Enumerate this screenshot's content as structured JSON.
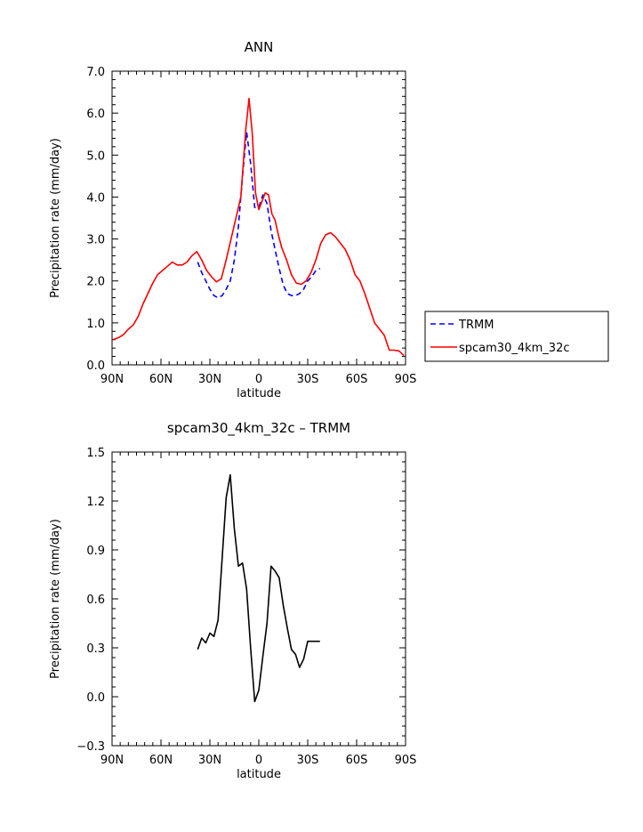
{
  "chart_data": [
    {
      "type": "line",
      "title": "ANN",
      "xlabel": "latitude",
      "ylabel": "Precipitation rate (mm/day)",
      "xlim": [
        -90,
        90
      ],
      "ylim": [
        0,
        7
      ],
      "xticks": [
        -90,
        -60,
        -30,
        0,
        30,
        60,
        90
      ],
      "xtick_labels": [
        "90N",
        "60N",
        "30N",
        "0",
        "30S",
        "60S",
        "90S"
      ],
      "yticks": [
        0,
        1,
        2,
        3,
        4,
        5,
        6,
        7
      ],
      "ytick_labels": [
        "0.0",
        "1.0",
        "2.0",
        "3.0",
        "4.0",
        "5.0",
        "6.0",
        "7.0"
      ],
      "legend_position": "right",
      "series": [
        {
          "name": "TRMM",
          "color": "#0000ff",
          "dash": "dashed",
          "x": [
            -37.5,
            -35,
            -32.5,
            -30,
            -27.5,
            -25,
            -22.5,
            -20,
            -17.5,
            -15,
            -12.5,
            -10,
            -7.5,
            -5,
            -2.5,
            0,
            2.5,
            5,
            7.5,
            10,
            12.5,
            15,
            17.5,
            20,
            22.5,
            25,
            27.5,
            30,
            32.5,
            35,
            37.5
          ],
          "y": [
            2.45,
            2.2,
            2.0,
            1.8,
            1.65,
            1.6,
            1.65,
            1.8,
            2.0,
            2.5,
            3.3,
            4.5,
            5.55,
            4.8,
            3.75,
            3.75,
            4.05,
            3.85,
            3.2,
            2.75,
            2.3,
            1.9,
            1.7,
            1.65,
            1.65,
            1.7,
            1.8,
            2.0,
            2.1,
            2.25,
            2.3
          ]
        },
        {
          "name": "spcam30_4km_32c",
          "color": "#ff0000",
          "dash": "solid",
          "x": [
            -89.5,
            -86,
            -83,
            -80,
            -77,
            -74,
            -71,
            -68,
            -65,
            -62,
            -59,
            -56,
            -53,
            -50,
            -47,
            -44,
            -41,
            -38,
            -35,
            -32,
            -29,
            -26,
            -23,
            -20,
            -17,
            -14,
            -11,
            -8,
            -6,
            -4,
            -2,
            0,
            2,
            4,
            6,
            8,
            10,
            12,
            14,
            17,
            20,
            23,
            26,
            29,
            32,
            35,
            38,
            41,
            44,
            47,
            50,
            53,
            56,
            59,
            62,
            65,
            68,
            71,
            74,
            77,
            80,
            83,
            86,
            89
          ],
          "y": [
            0.6,
            0.65,
            0.72,
            0.85,
            0.95,
            1.15,
            1.45,
            1.7,
            1.95,
            2.15,
            2.25,
            2.35,
            2.45,
            2.38,
            2.38,
            2.45,
            2.6,
            2.7,
            2.5,
            2.25,
            2.1,
            1.98,
            2.05,
            2.5,
            3.0,
            3.5,
            4.0,
            5.6,
            6.35,
            5.5,
            4.1,
            3.7,
            3.9,
            4.1,
            4.05,
            3.6,
            3.45,
            3.1,
            2.8,
            2.5,
            2.15,
            1.95,
            1.92,
            2.0,
            2.2,
            2.5,
            2.9,
            3.1,
            3.15,
            3.05,
            2.9,
            2.75,
            2.5,
            2.15,
            2.0,
            1.7,
            1.35,
            1.0,
            0.85,
            0.7,
            0.35,
            0.35,
            0.33,
            0.22
          ]
        }
      ]
    },
    {
      "type": "line",
      "title": "spcam30_4km_32c – TRMM",
      "xlabel": "latitude",
      "ylabel": "Precipitation rate (mm/day)",
      "xlim": [
        -90,
        90
      ],
      "ylim": [
        -0.3,
        1.5
      ],
      "xticks": [
        -90,
        -60,
        -30,
        0,
        30,
        60,
        90
      ],
      "xtick_labels": [
        "90N",
        "60N",
        "30N",
        "0",
        "30S",
        "60S",
        "90S"
      ],
      "yticks": [
        -0.3,
        0.0,
        0.3,
        0.6,
        0.9,
        1.2,
        1.5
      ],
      "ytick_labels": [
        "−0.3",
        "0.0",
        "0.3",
        "0.6",
        "0.9",
        "1.2",
        "1.5"
      ],
      "series": [
        {
          "color": "#000000",
          "dash": "solid",
          "x": [
            -37.5,
            -35,
            -32.5,
            -30,
            -27.5,
            -25,
            -22.5,
            -20,
            -17.5,
            -15,
            -12.5,
            -10,
            -7.5,
            -5,
            -2.5,
            0,
            2.5,
            5,
            7.5,
            10,
            12.5,
            15,
            17.5,
            20,
            22.5,
            25,
            27.5,
            30,
            32.5,
            35,
            37.5
          ],
          "y": [
            0.29,
            0.36,
            0.33,
            0.39,
            0.37,
            0.47,
            0.85,
            1.22,
            1.36,
            1.03,
            0.8,
            0.82,
            0.66,
            0.3,
            -0.03,
            0.04,
            0.25,
            0.45,
            0.8,
            0.77,
            0.73,
            0.56,
            0.42,
            0.29,
            0.26,
            0.18,
            0.23,
            0.34,
            0.34,
            0.34,
            0.34
          ]
        }
      ]
    }
  ]
}
